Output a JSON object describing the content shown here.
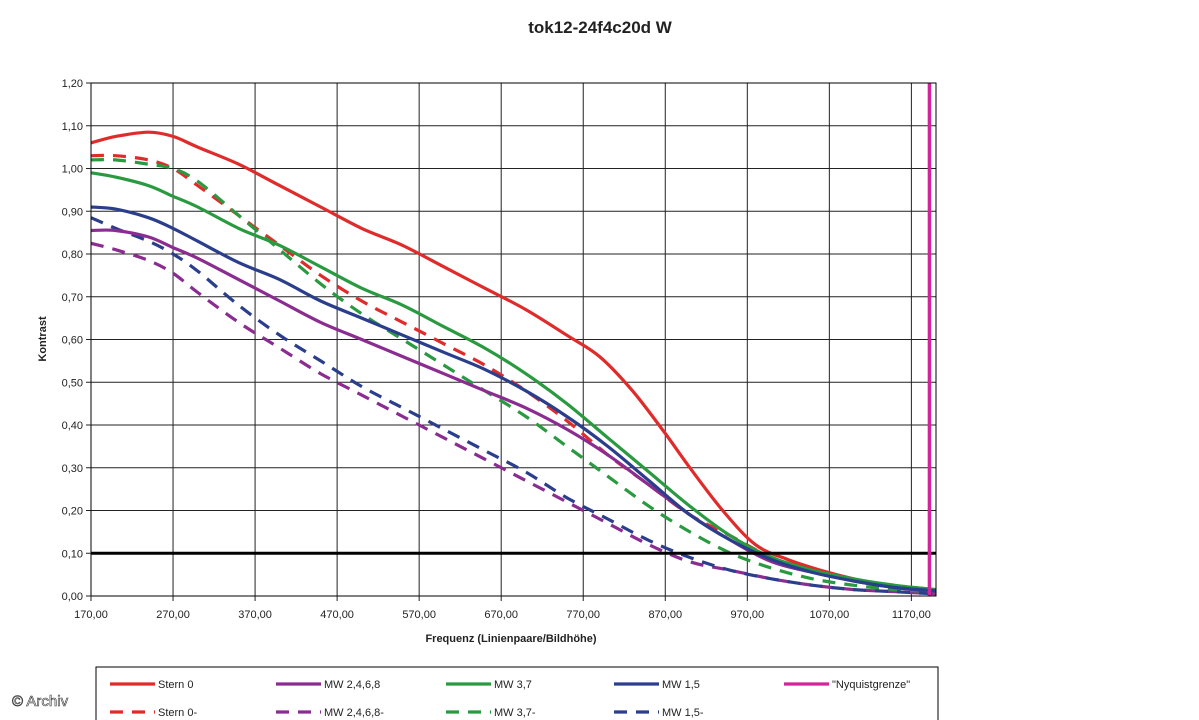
{
  "chart_data": {
    "type": "line",
    "title": "tok12-24f4c20d W",
    "xlabel": "Frequenz (Linienpaare/Bildhöhe)",
    "ylabel": "Kontrast",
    "xlim": [
      170,
      1200
    ],
    "ylim": [
      0,
      1.2
    ],
    "x_ticks": [
      "170,00",
      "270,00",
      "370,00",
      "470,00",
      "570,00",
      "670,00",
      "770,00",
      "870,00",
      "970,00",
      "1070,00",
      "1170,00"
    ],
    "y_ticks": [
      "0,00",
      "0,10",
      "0,20",
      "0,30",
      "0,40",
      "0,50",
      "0,60",
      "0,70",
      "0,80",
      "0,90",
      "1,00",
      "1,10",
      "1,20"
    ],
    "grid": true,
    "legend_position": "bottom",
    "reference_lines": [
      {
        "orientation": "horizontal",
        "y": 0.1,
        "color": "#000000"
      },
      {
        "orientation": "vertical",
        "x": 1192,
        "color": "#d3249b"
      }
    ],
    "series": [
      {
        "name": "Stern 0",
        "color": "#e02b2b",
        "dash": false,
        "x": [
          170,
          200,
          240,
          270,
          300,
          350,
          400,
          450,
          500,
          550,
          600,
          650,
          700,
          750,
          790,
          830,
          870,
          900,
          940,
          980,
          1020,
          1060,
          1100,
          1140,
          1170,
          1200
        ],
        "y": [
          1.06,
          1.075,
          1.085,
          1.075,
          1.05,
          1.01,
          0.96,
          0.91,
          0.86,
          0.82,
          0.77,
          0.72,
          0.67,
          0.61,
          0.56,
          0.48,
          0.38,
          0.3,
          0.2,
          0.12,
          0.085,
          0.06,
          0.04,
          0.025,
          0.02,
          0.015
        ]
      },
      {
        "name": "Stern 0-",
        "color": "#e02b2b",
        "dash": true,
        "x": [
          170,
          200,
          240,
          270,
          300,
          350,
          400,
          450,
          500,
          550,
          600,
          650,
          700,
          750,
          800,
          850,
          900,
          950,
          1000,
          1050,
          1100,
          1150,
          1200
        ],
        "y": [
          1.03,
          1.03,
          1.02,
          1.0,
          0.96,
          0.89,
          0.82,
          0.75,
          0.69,
          0.64,
          0.59,
          0.54,
          0.48,
          0.41,
          0.33,
          0.26,
          0.19,
          0.14,
          0.09,
          0.06,
          0.035,
          0.02,
          0.012
        ]
      },
      {
        "name": "MW 2,4,6,8",
        "color": "#8b2c91",
        "dash": false,
        "x": [
          170,
          200,
          240,
          270,
          300,
          350,
          400,
          450,
          500,
          550,
          600,
          650,
          700,
          750,
          800,
          850,
          900,
          950,
          1000,
          1050,
          1100,
          1150,
          1200
        ],
        "y": [
          0.855,
          0.855,
          0.84,
          0.815,
          0.79,
          0.74,
          0.69,
          0.64,
          0.6,
          0.56,
          0.52,
          0.48,
          0.44,
          0.39,
          0.33,
          0.26,
          0.19,
          0.13,
          0.08,
          0.055,
          0.035,
          0.02,
          0.01
        ]
      },
      {
        "name": "MW 2,4,6,8-",
        "color": "#8b2c91",
        "dash": true,
        "x": [
          170,
          200,
          240,
          270,
          300,
          350,
          400,
          450,
          500,
          550,
          600,
          650,
          700,
          750,
          800,
          850,
          900,
          950,
          1000,
          1050,
          1100,
          1150,
          1200
        ],
        "y": [
          0.825,
          0.81,
          0.785,
          0.755,
          0.71,
          0.64,
          0.58,
          0.52,
          0.47,
          0.42,
          0.37,
          0.32,
          0.27,
          0.22,
          0.17,
          0.12,
          0.08,
          0.06,
          0.04,
          0.025,
          0.015,
          0.01,
          0.005
        ]
      },
      {
        "name": "MW 3,7",
        "color": "#2a9a40",
        "dash": false,
        "x": [
          170,
          200,
          240,
          270,
          300,
          350,
          400,
          450,
          500,
          550,
          600,
          650,
          700,
          750,
          800,
          850,
          900,
          950,
          1000,
          1050,
          1100,
          1150,
          1200
        ],
        "y": [
          0.99,
          0.98,
          0.96,
          0.935,
          0.91,
          0.86,
          0.82,
          0.77,
          0.72,
          0.68,
          0.63,
          0.58,
          0.52,
          0.45,
          0.37,
          0.29,
          0.21,
          0.14,
          0.09,
          0.06,
          0.04,
          0.025,
          0.015
        ]
      },
      {
        "name": "MW 3,7-",
        "color": "#2a9a40",
        "dash": true,
        "x": [
          170,
          200,
          240,
          270,
          300,
          350,
          400,
          450,
          500,
          550,
          600,
          650,
          700,
          750,
          800,
          850,
          900,
          950,
          1000,
          1050,
          1100,
          1150,
          1200
        ],
        "y": [
          1.02,
          1.02,
          1.01,
          1.0,
          0.97,
          0.89,
          0.81,
          0.73,
          0.66,
          0.6,
          0.54,
          0.48,
          0.42,
          0.35,
          0.28,
          0.21,
          0.15,
          0.1,
          0.065,
          0.04,
          0.025,
          0.015,
          0.01
        ]
      },
      {
        "name": "MW 1,5",
        "color": "#2a3e8c",
        "dash": false,
        "x": [
          170,
          200,
          240,
          270,
          300,
          350,
          400,
          450,
          500,
          550,
          600,
          650,
          700,
          750,
          800,
          850,
          900,
          950,
          1000,
          1050,
          1100,
          1150,
          1200
        ],
        "y": [
          0.91,
          0.905,
          0.885,
          0.86,
          0.83,
          0.78,
          0.74,
          0.69,
          0.65,
          0.61,
          0.57,
          0.53,
          0.48,
          0.42,
          0.35,
          0.27,
          0.19,
          0.13,
          0.085,
          0.055,
          0.035,
          0.02,
          0.012
        ]
      },
      {
        "name": "MW 1,5-",
        "color": "#2a3e8c",
        "dash": true,
        "x": [
          170,
          200,
          240,
          270,
          300,
          350,
          400,
          450,
          500,
          550,
          600,
          650,
          700,
          750,
          800,
          850,
          900,
          950,
          1000,
          1050,
          1100,
          1150,
          1200
        ],
        "y": [
          0.885,
          0.86,
          0.83,
          0.8,
          0.76,
          0.68,
          0.61,
          0.55,
          0.49,
          0.44,
          0.39,
          0.34,
          0.29,
          0.23,
          0.18,
          0.13,
          0.09,
          0.06,
          0.04,
          0.025,
          0.015,
          0.01,
          0.005
        ]
      },
      {
        "name": "\"Nyquistgrenze\"",
        "color": "#d3249b",
        "dash": false,
        "x": [],
        "y": []
      }
    ]
  },
  "watermark": "© Archiv"
}
